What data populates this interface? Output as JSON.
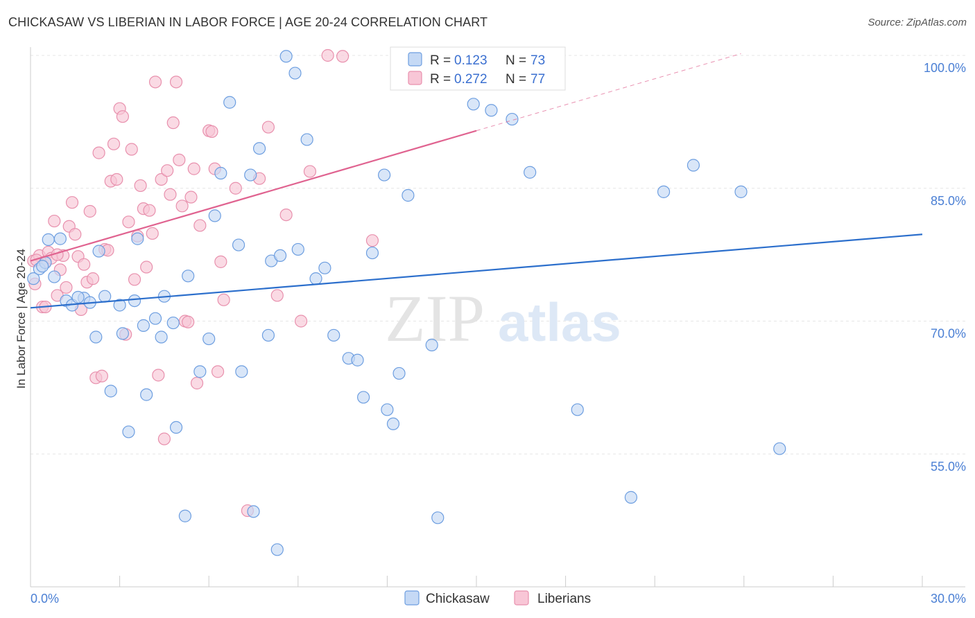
{
  "title": "CHICKASAW VS LIBERIAN IN LABOR FORCE | AGE 20-24 CORRELATION CHART",
  "source": "Source: ZipAtlas.com",
  "watermark": {
    "zip": "ZIP",
    "atlas": "atlas"
  },
  "legend": {
    "r_label": "R =",
    "n_label": "N =",
    "rows": [
      {
        "r": "0.123",
        "n": "73"
      },
      {
        "r": "0.272",
        "n": "77"
      }
    ]
  },
  "bottom_legend": [
    "Chickasaw",
    "Liberians"
  ],
  "colors": {
    "chickasaw_fill": "#c5d9f5",
    "chickasaw_stroke": "#6d9ee0",
    "chickasaw_line": "#2c6fcc",
    "liberian_fill": "#f8c6d6",
    "liberian_stroke": "#e890ad",
    "liberian_line": "#e06390",
    "tick_text": "#4a7fd4"
  },
  "chart_data": {
    "type": "scatter",
    "title": "CHICKASAW VS LIBERIAN IN LABOR FORCE | AGE 20-24 CORRELATION CHART",
    "xlabel": "",
    "ylabel": "In Labor Force | Age 20-24",
    "xlim": [
      0,
      30
    ],
    "ylim": [
      40,
      100
    ],
    "x_tick_labels": [
      "0.0%",
      "30.0%"
    ],
    "y_ticks": [
      55,
      70,
      85,
      100
    ],
    "y_tick_labels": [
      "55.0%",
      "70.0%",
      "85.0%",
      "100.0%"
    ],
    "grid": true,
    "legend_position": "top-center",
    "series": [
      {
        "name": "Chickasaw",
        "trend": {
          "x": [
            0,
            30
          ],
          "y": [
            71.5,
            79.8
          ]
        },
        "points": [
          [
            0.1,
            74.8
          ],
          [
            0.3,
            75.9
          ],
          [
            0.5,
            76.6
          ],
          [
            0.6,
            79.2
          ],
          [
            0.8,
            75.0
          ],
          [
            1.0,
            79.3
          ],
          [
            1.2,
            72.3
          ],
          [
            1.4,
            71.8
          ],
          [
            1.8,
            72.6
          ],
          [
            2.0,
            72.1
          ],
          [
            2.2,
            68.2
          ],
          [
            2.3,
            77.9
          ],
          [
            2.5,
            72.8
          ],
          [
            2.7,
            62.1
          ],
          [
            3.0,
            71.8
          ],
          [
            3.1,
            68.6
          ],
          [
            3.3,
            57.5
          ],
          [
            3.5,
            72.3
          ],
          [
            3.6,
            79.3
          ],
          [
            3.8,
            69.5
          ],
          [
            3.9,
            61.7
          ],
          [
            4.2,
            70.3
          ],
          [
            4.4,
            68.2
          ],
          [
            4.5,
            72.8
          ],
          [
            4.8,
            69.8
          ],
          [
            4.9,
            58.0
          ],
          [
            5.2,
            48.0
          ],
          [
            5.3,
            75.1
          ],
          [
            5.7,
            64.3
          ],
          [
            6.0,
            68.0
          ],
          [
            6.2,
            81.9
          ],
          [
            6.4,
            86.7
          ],
          [
            6.7,
            94.7
          ],
          [
            7.0,
            78.6
          ],
          [
            7.1,
            64.3
          ],
          [
            7.4,
            86.5
          ],
          [
            7.5,
            48.5
          ],
          [
            7.7,
            89.5
          ],
          [
            8.0,
            68.4
          ],
          [
            8.1,
            76.8
          ],
          [
            8.3,
            44.2
          ],
          [
            8.4,
            77.4
          ],
          [
            8.6,
            99.9
          ],
          [
            8.9,
            98.0
          ],
          [
            9.0,
            78.1
          ],
          [
            9.3,
            90.5
          ],
          [
            9.6,
            74.8
          ],
          [
            9.9,
            76.0
          ],
          [
            10.2,
            68.4
          ],
          [
            10.7,
            65.8
          ],
          [
            11.0,
            65.6
          ],
          [
            11.2,
            61.4
          ],
          [
            11.5,
            77.7
          ],
          [
            11.9,
            86.5
          ],
          [
            12.0,
            60.0
          ],
          [
            12.2,
            58.4
          ],
          [
            12.4,
            64.1
          ],
          [
            12.7,
            84.2
          ],
          [
            13.5,
            67.3
          ],
          [
            13.7,
            47.8
          ],
          [
            14.9,
            94.5
          ],
          [
            15.5,
            93.8
          ],
          [
            16.2,
            92.8
          ],
          [
            16.5,
            100.0
          ],
          [
            16.8,
            86.8
          ],
          [
            18.4,
            60.0
          ],
          [
            20.2,
            50.1
          ],
          [
            21.3,
            84.6
          ],
          [
            22.3,
            87.6
          ],
          [
            23.9,
            84.6
          ],
          [
            25.2,
            55.6
          ],
          [
            0.4,
            76.2
          ],
          [
            1.6,
            72.7
          ]
        ]
      },
      {
        "name": "Liberians",
        "trend": {
          "x": [
            0,
            15
          ],
          "y": [
            76.8,
            91.5
          ]
        },
        "trend_dashed": {
          "x": [
            15,
            23.9
          ],
          "y": [
            91.5,
            100.2
          ]
        },
        "points": [
          [
            0.1,
            76.8
          ],
          [
            0.15,
            74.2
          ],
          [
            0.3,
            77.4
          ],
          [
            0.4,
            71.6
          ],
          [
            0.5,
            76.7
          ],
          [
            0.6,
            77.8
          ],
          [
            0.7,
            77.1
          ],
          [
            0.8,
            81.3
          ],
          [
            0.9,
            72.9
          ],
          [
            1.0,
            75.8
          ],
          [
            1.1,
            77.4
          ],
          [
            1.2,
            73.8
          ],
          [
            1.3,
            80.7
          ],
          [
            1.4,
            83.4
          ],
          [
            1.5,
            79.8
          ],
          [
            1.6,
            77.3
          ],
          [
            1.7,
            71.3
          ],
          [
            1.8,
            76.4
          ],
          [
            1.9,
            74.4
          ],
          [
            2.0,
            82.4
          ],
          [
            2.1,
            74.8
          ],
          [
            2.2,
            63.6
          ],
          [
            2.3,
            89.0
          ],
          [
            2.4,
            63.8
          ],
          [
            2.5,
            78.1
          ],
          [
            2.6,
            78.0
          ],
          [
            2.7,
            85.8
          ],
          [
            2.8,
            90.0
          ],
          [
            2.9,
            86.0
          ],
          [
            3.0,
            94.0
          ],
          [
            3.1,
            93.1
          ],
          [
            3.2,
            68.5
          ],
          [
            3.3,
            81.2
          ],
          [
            3.4,
            89.4
          ],
          [
            3.5,
            74.7
          ],
          [
            3.6,
            79.6
          ],
          [
            3.7,
            85.3
          ],
          [
            3.8,
            82.7
          ],
          [
            3.9,
            76.1
          ],
          [
            4.0,
            82.5
          ],
          [
            4.1,
            79.9
          ],
          [
            4.2,
            97.0
          ],
          [
            4.3,
            63.9
          ],
          [
            4.4,
            86.0
          ],
          [
            4.5,
            56.7
          ],
          [
            4.6,
            87.0
          ],
          [
            4.7,
            84.3
          ],
          [
            4.8,
            92.4
          ],
          [
            4.9,
            97.0
          ],
          [
            5.0,
            88.2
          ],
          [
            5.1,
            83.0
          ],
          [
            5.2,
            70.0
          ],
          [
            5.3,
            69.9
          ],
          [
            5.4,
            84.0
          ],
          [
            5.5,
            87.2
          ],
          [
            5.6,
            63.0
          ],
          [
            5.7,
            80.8
          ],
          [
            6.0,
            91.5
          ],
          [
            6.2,
            87.2
          ],
          [
            6.3,
            64.3
          ],
          [
            6.4,
            76.7
          ],
          [
            6.5,
            72.4
          ],
          [
            6.9,
            85.0
          ],
          [
            7.3,
            48.6
          ],
          [
            7.7,
            86.1
          ],
          [
            8.0,
            91.9
          ],
          [
            8.3,
            72.9
          ],
          [
            8.6,
            82.0
          ],
          [
            9.1,
            70.0
          ],
          [
            9.4,
            86.9
          ],
          [
            10.0,
            100.0
          ],
          [
            10.5,
            99.9
          ],
          [
            11.5,
            79.1
          ],
          [
            0.2,
            76.9
          ],
          [
            0.9,
            77.5
          ],
          [
            6.1,
            91.4
          ],
          [
            0.5,
            71.6
          ]
        ]
      }
    ]
  }
}
